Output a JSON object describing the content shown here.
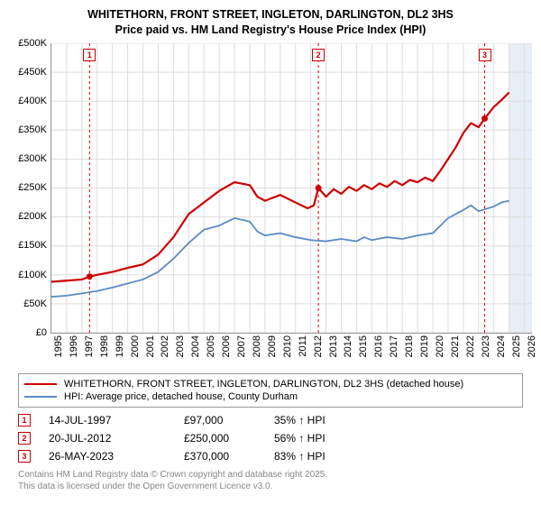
{
  "title_line1": "WHITETHORN, FRONT STREET, INGLETON, DARLINGTON, DL2 3HS",
  "title_line2": "Price paid vs. HM Land Registry's House Price Index (HPI)",
  "chart": {
    "type": "line",
    "background_color": "#ffffff",
    "grid_color": "#dddddd",
    "forecast_band_color": "#e8eef6",
    "marker_line_color": "#cc0000",
    "x_years": [
      1995,
      1996,
      1997,
      1998,
      1999,
      2000,
      2001,
      2002,
      2003,
      2004,
      2005,
      2006,
      2007,
      2008,
      2009,
      2010,
      2011,
      2012,
      2013,
      2014,
      2015,
      2016,
      2017,
      2018,
      2019,
      2020,
      2021,
      2022,
      2023,
      2024,
      2025,
      2026
    ],
    "x_range": [
      1995,
      2026.5
    ],
    "y_ticks": [
      0,
      50000,
      100000,
      150000,
      200000,
      250000,
      300000,
      350000,
      400000,
      450000,
      500000
    ],
    "y_tick_labels": [
      "£0",
      "£50K",
      "£100K",
      "£150K",
      "£200K",
      "£250K",
      "£300K",
      "£350K",
      "£400K",
      "£450K",
      "£500K"
    ],
    "y_range": [
      0,
      500000
    ],
    "label_fontsize": 11,
    "series_red": {
      "color": "#cc0000",
      "line_width": 2.2,
      "points": [
        [
          1995,
          88000
        ],
        [
          1996,
          90000
        ],
        [
          1997,
          92000
        ],
        [
          1997.5,
          97000
        ],
        [
          1998,
          100000
        ],
        [
          1999,
          105000
        ],
        [
          2000,
          112000
        ],
        [
          2001,
          118000
        ],
        [
          2002,
          135000
        ],
        [
          2003,
          165000
        ],
        [
          2004,
          205000
        ],
        [
          2005,
          225000
        ],
        [
          2006,
          245000
        ],
        [
          2007,
          260000
        ],
        [
          2008,
          255000
        ],
        [
          2008.5,
          235000
        ],
        [
          2009,
          228000
        ],
        [
          2010,
          238000
        ],
        [
          2011,
          225000
        ],
        [
          2011.8,
          215000
        ],
        [
          2012.2,
          220000
        ],
        [
          2012.5,
          250000
        ],
        [
          2013,
          235000
        ],
        [
          2013.5,
          248000
        ],
        [
          2014,
          240000
        ],
        [
          2014.5,
          252000
        ],
        [
          2015,
          245000
        ],
        [
          2015.5,
          255000
        ],
        [
          2016,
          248000
        ],
        [
          2016.5,
          258000
        ],
        [
          2017,
          252000
        ],
        [
          2017.5,
          262000
        ],
        [
          2018,
          255000
        ],
        [
          2018.5,
          264000
        ],
        [
          2019,
          260000
        ],
        [
          2019.5,
          268000
        ],
        [
          2020,
          262000
        ],
        [
          2020.5,
          280000
        ],
        [
          2021,
          300000
        ],
        [
          2021.5,
          320000
        ],
        [
          2022,
          345000
        ],
        [
          2022.5,
          362000
        ],
        [
          2023,
          355000
        ],
        [
          2023.4,
          370000
        ],
        [
          2024,
          390000
        ],
        [
          2024.5,
          402000
        ],
        [
          2025,
          415000
        ]
      ]
    },
    "series_blue": {
      "color": "#5b8bc4",
      "line_width": 1.8,
      "points": [
        [
          1995,
          62000
        ],
        [
          1996,
          64000
        ],
        [
          1997,
          68000
        ],
        [
          1998,
          72000
        ],
        [
          1999,
          78000
        ],
        [
          2000,
          85000
        ],
        [
          2001,
          92000
        ],
        [
          2002,
          105000
        ],
        [
          2003,
          128000
        ],
        [
          2004,
          155000
        ],
        [
          2005,
          178000
        ],
        [
          2006,
          185000
        ],
        [
          2007,
          198000
        ],
        [
          2008,
          192000
        ],
        [
          2008.5,
          175000
        ],
        [
          2009,
          168000
        ],
        [
          2010,
          172000
        ],
        [
          2011,
          165000
        ],
        [
          2012,
          160000
        ],
        [
          2013,
          158000
        ],
        [
          2014,
          162000
        ],
        [
          2015,
          158000
        ],
        [
          2015.5,
          165000
        ],
        [
          2016,
          160000
        ],
        [
          2017,
          165000
        ],
        [
          2018,
          162000
        ],
        [
          2019,
          168000
        ],
        [
          2020,
          172000
        ],
        [
          2020.5,
          185000
        ],
        [
          2021,
          198000
        ],
        [
          2022,
          212000
        ],
        [
          2022.5,
          220000
        ],
        [
          2023,
          210000
        ],
        [
          2024,
          218000
        ],
        [
          2024.5,
          225000
        ],
        [
          2025,
          228000
        ]
      ]
    },
    "sale_markers": [
      {
        "n": "1",
        "x_year": 1997.5,
        "y": 97000
      },
      {
        "n": "2",
        "x_year": 2012.5,
        "y": 250000
      },
      {
        "n": "3",
        "x_year": 2023.4,
        "y": 370000
      }
    ],
    "forecast_start_year": 2025
  },
  "legend": {
    "red_label": "WHITETHORN, FRONT STREET, INGLETON, DARLINGTON, DL2 3HS (detached house)",
    "blue_label": "HPI: Average price, detached house, County Durham",
    "red_color": "#cc0000",
    "blue_color": "#5b8bc4"
  },
  "sales": [
    {
      "n": "1",
      "date": "14-JUL-1997",
      "price": "£97,000",
      "hpi": "35% ↑ HPI"
    },
    {
      "n": "2",
      "date": "20-JUL-2012",
      "price": "£250,000",
      "hpi": "56% ↑ HPI"
    },
    {
      "n": "3",
      "date": "26-MAY-2023",
      "price": "£370,000",
      "hpi": "83% ↑ HPI"
    }
  ],
  "footer_line1": "Contains HM Land Registry data © Crown copyright and database right 2025.",
  "footer_line2": "This data is licensed under the Open Government Licence v3.0."
}
